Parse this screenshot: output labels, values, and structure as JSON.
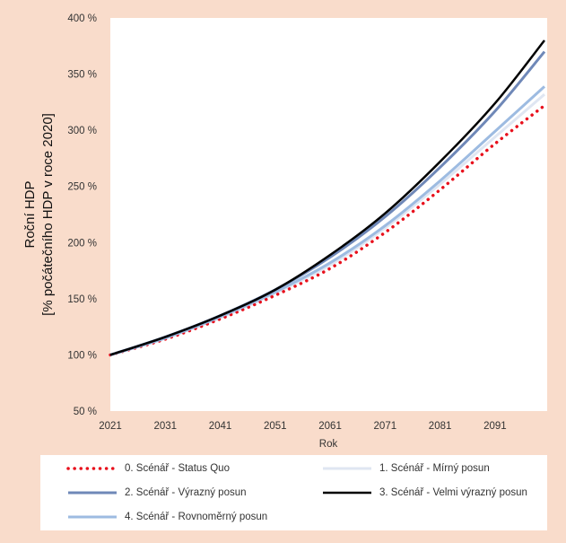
{
  "chart_data": {
    "type": "line",
    "title": "",
    "xlabel": "Rok",
    "ylabel_lines": [
      "Roční HDP",
      "[% počátečního HDP v roce 2020]"
    ],
    "x_ticks": [
      "2021",
      "2031",
      "2041",
      "2051",
      "2061",
      "2071",
      "2081",
      "2091"
    ],
    "y_tick_labels": [
      "50 %",
      "100 %",
      "150 %",
      "200 %",
      "250 %",
      "300 %",
      "350 %",
      "400 %"
    ],
    "y_ticks": [
      50,
      100,
      150,
      200,
      250,
      300,
      350,
      400
    ],
    "xlim": [
      2021,
      2100
    ],
    "ylim": [
      50,
      400
    ],
    "grid": false,
    "legend_position": "bottom",
    "x": [
      2021,
      2031,
      2041,
      2051,
      2061,
      2071,
      2081,
      2091,
      2100
    ],
    "series": [
      {
        "name": "0. Scénář - Status Quo",
        "color": "#e8101c",
        "style": "dotted",
        "values": [
          100,
          114,
          132,
          153,
          177,
          209,
          247,
          288,
          322
        ]
      },
      {
        "name": "1. Scénář - Mírný posun",
        "color": "#dfe6f2",
        "style": "solid",
        "values": [
          100,
          115,
          133,
          155,
          180,
          213,
          252,
          294,
          332
        ]
      },
      {
        "name": "2. Scénář - Výrazný posun",
        "color": "#6f88b8",
        "style": "solid",
        "values": [
          100,
          116,
          135,
          158,
          187,
          223,
          267,
          317,
          370
        ]
      },
      {
        "name": "3. Scénář - Velmi výrazný posun",
        "color": "#000000",
        "style": "solid",
        "values": [
          100,
          116,
          135,
          158,
          189,
          226,
          272,
          324,
          380
        ]
      },
      {
        "name": "4. Scénář - Rovnoměrný posun",
        "color": "#9dbbe1",
        "style": "solid",
        "values": [
          100,
          115,
          134,
          156,
          182,
          215,
          255,
          299,
          339
        ]
      }
    ]
  }
}
